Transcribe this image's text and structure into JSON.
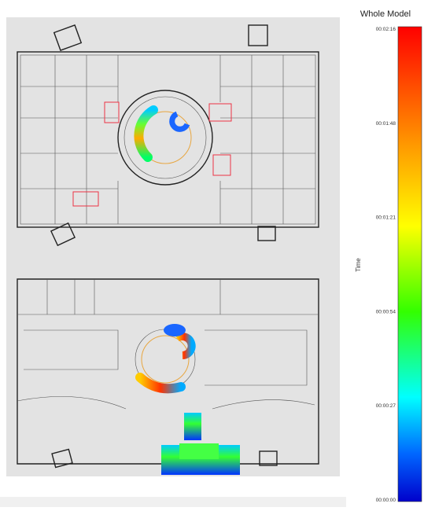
{
  "legend": {
    "title": "Whole Model",
    "axis_label": "Time",
    "ticks": [
      "00:02:16",
      "00:01:48",
      "00:01:21",
      "00:00:54",
      "00:00:27",
      "00:00:00"
    ]
  }
}
